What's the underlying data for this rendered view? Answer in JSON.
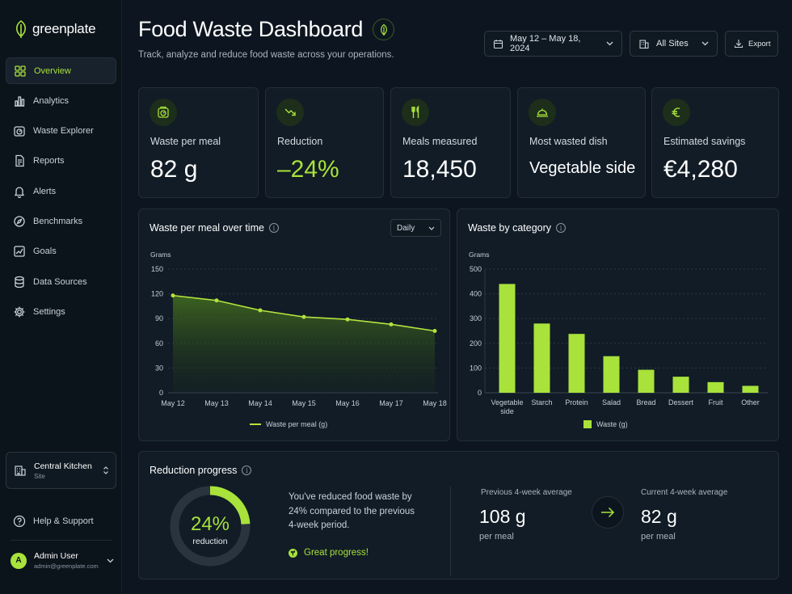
{
  "app": {
    "name": "greenplate"
  },
  "nav": [
    {
      "label": "Overview",
      "icon": "grid-icon",
      "active": true
    },
    {
      "label": "Analytics",
      "icon": "bar-chart-icon"
    },
    {
      "label": "Waste Explorer",
      "icon": "scale-icon"
    },
    {
      "label": "Reports",
      "icon": "document-icon"
    },
    {
      "label": "Alerts",
      "icon": "bell-icon"
    },
    {
      "label": "Benchmarks",
      "icon": "compass-icon"
    },
    {
      "label": "Goals",
      "icon": "chart-target-icon"
    },
    {
      "label": "Data Sources",
      "icon": "database-icon"
    },
    {
      "label": "Settings",
      "icon": "gear-icon"
    }
  ],
  "site": {
    "name": "Central Kitchen",
    "type": "Site"
  },
  "help": {
    "label": "Help & Support"
  },
  "user": {
    "name": "Admin User",
    "email": "admin@greenplate.com",
    "initial": "A"
  },
  "header": {
    "title": "Food Waste Dashboard",
    "subtitle": "Track, analyze and reduce food waste across your operations.",
    "date_range": "May 12 – May 18, 2024",
    "site_filter": "All Sites",
    "export_label": "Export"
  },
  "kpis": [
    {
      "label": "Waste per meal",
      "value": "82 g",
      "icon": "scale-icon"
    },
    {
      "label": "Reduction",
      "value": "–24%",
      "icon": "trend-down-icon"
    },
    {
      "label": "Meals measured",
      "value": "18,450",
      "icon": "utensils-icon"
    },
    {
      "label": "Most wasted dish",
      "value": "Vegetable side",
      "icon": "cloche-icon"
    },
    {
      "label": "Estimated savings",
      "value": "€4,280",
      "icon": "euro-icon"
    }
  ],
  "line_card": {
    "title": "Waste per meal over time",
    "granularity": "Daily"
  },
  "bar_card": {
    "title": "Waste by category"
  },
  "chart_data": [
    {
      "type": "area",
      "ylabel": "Grams",
      "ylim": [
        0,
        150
      ],
      "yticks": [
        0,
        30,
        60,
        90,
        120,
        150
      ],
      "categories": [
        "May 12",
        "May 13",
        "May 14",
        "May 15",
        "May 16",
        "May 17",
        "May 18"
      ],
      "series": [
        {
          "name": "Waste per meal (g)",
          "values": [
            118,
            112,
            100,
            92,
            89,
            83,
            75
          ]
        }
      ],
      "legend": "bottom",
      "color": "#b4e33d"
    },
    {
      "type": "bar",
      "ylabel": "Grams",
      "ylim": [
        0,
        500
      ],
      "yticks": [
        0,
        100,
        200,
        300,
        400,
        500
      ],
      "categories": [
        "Vegetable side",
        "Starch",
        "Protein",
        "Salad",
        "Bread",
        "Dessert",
        "Fruit",
        "Other"
      ],
      "series": [
        {
          "name": "Waste (g)",
          "values": [
            440,
            280,
            238,
            148,
            93,
            65,
            43,
            28
          ]
        }
      ],
      "legend": "bottom",
      "color": "#a8e23b"
    }
  ],
  "progress": {
    "title": "Reduction progress",
    "percent": 24,
    "percent_label": "24%",
    "ring_label": "reduction",
    "text": "You've reduced food waste by 24% compared to the previous 4-week period.",
    "badge": "Great progress!",
    "prev_label": "Previous 4-week average",
    "prev_value": "108 g",
    "prev_unit": "per meal",
    "curr_label": "Current 4-week average",
    "curr_value": "82 g",
    "curr_unit": "per meal"
  },
  "colors": {
    "accent": "#a8e23b",
    "background": "#0d1620",
    "card": "#111c26"
  }
}
